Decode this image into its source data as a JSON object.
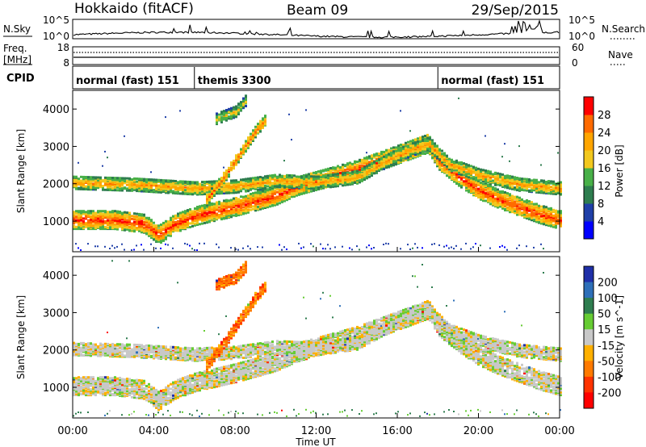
{
  "header": {
    "station": "Hokkaido (fitACF)",
    "beam": "Beam 09",
    "date": "29/Sep/2015"
  },
  "noise_panel": {
    "left_label": "N.Sky",
    "right_label": "N.Search",
    "left_ticks": [
      "10^5",
      "10^0"
    ],
    "right_ticks": [
      "10^5",
      "10^0"
    ]
  },
  "freq_panel": {
    "left_label_line1": "Freq.",
    "left_label_line2": "[MHz]",
    "right_label": "Nave",
    "left_ticks": [
      "18",
      "8"
    ],
    "right_ticks": [
      "60",
      "0"
    ]
  },
  "cpid_panel": {
    "label": "CPID",
    "segments": [
      {
        "label": "normal (fast) 151",
        "start_h": 0,
        "end_h": 6
      },
      {
        "label": "themis 3300",
        "start_h": 6,
        "end_h": 18
      },
      {
        "label": "normal (fast) 151",
        "start_h": 18,
        "end_h": 24
      }
    ]
  },
  "power_colorbar": {
    "label": "Power [dB]",
    "ticks": [
      "4",
      "8",
      "12",
      "16",
      "20",
      "24",
      "28"
    ],
    "colors": [
      "#0000ff",
      "#1f3fa8",
      "#2e7d4f",
      "#48b048",
      "#f2c81e",
      "#ffa500",
      "#ff6a00",
      "#ff0000"
    ]
  },
  "velocity_colorbar": {
    "label": "Velocity [m s^-1]",
    "ticks": [
      "200",
      "100",
      "50",
      "15",
      "-15",
      "-50",
      "-100",
      "-200"
    ],
    "colors": [
      "#1f2fa8",
      "#2e6fb8",
      "#2e7d4f",
      "#66cc33",
      "#c8c8c8",
      "#ffb000",
      "#ff7a00",
      "#ff3300",
      "#ff0000"
    ]
  },
  "chart_data": [
    {
      "type": "heatmap",
      "title": "Power",
      "xlabel": "Time UT",
      "ylabel": "Slant Range [km]",
      "x_ticks": [
        "00:00",
        "04:00",
        "08:00",
        "12:00",
        "16:00",
        "20:00",
        "00:00"
      ],
      "y_ticks": [
        "1000",
        "2000",
        "3000",
        "4000"
      ],
      "xlim": [
        0,
        24
      ],
      "ylim": [
        180,
        4500
      ],
      "bands": [
        {
          "points": [
            [
              0,
              1000
            ],
            [
              2,
              1000
            ],
            [
              3.5,
              900
            ],
            [
              4.2,
              600
            ],
            [
              5,
              900
            ],
            [
              6,
              1100
            ],
            [
              8,
              1350
            ],
            [
              9,
              1500
            ],
            [
              10,
              1650
            ],
            [
              11,
              1900
            ],
            [
              12,
              2050
            ],
            [
              13,
              2200
            ],
            [
              14,
              2350
            ],
            [
              15,
              2550
            ],
            [
              16,
              2750
            ],
            [
              17,
              2950
            ],
            [
              17.5,
              3050
            ],
            [
              18,
              2600
            ],
            [
              19,
              2150
            ],
            [
              20,
              1800
            ],
            [
              21,
              1550
            ],
            [
              22,
              1350
            ],
            [
              23,
              1150
            ],
            [
              24,
              1000
            ]
          ],
          "halfwidth": 240,
          "level": 0.92
        },
        {
          "points": [
            [
              0,
              2000
            ],
            [
              3,
              1950
            ],
            [
              6,
              1850
            ],
            [
              8,
              1900
            ],
            [
              10,
              2050
            ],
            [
              12,
              2000
            ],
            [
              14,
              2150
            ],
            [
              16,
              2750
            ],
            [
              17.5,
              3050
            ],
            [
              18.5,
              2500
            ],
            [
              20,
              2200
            ],
            [
              22,
              1950
            ],
            [
              24,
              1850
            ]
          ],
          "halfwidth": 170,
          "level": 0.72
        },
        {
          "points": [
            [
              6.5,
              1500
            ],
            [
              7.5,
              2200
            ],
            [
              8.5,
              3000
            ],
            [
              9,
              3400
            ],
            [
              9.5,
              3700
            ]
          ],
          "halfwidth": 150,
          "level": 0.82
        },
        {
          "points": [
            [
              7,
              3700
            ],
            [
              8,
              3900
            ],
            [
              8.5,
              4200
            ]
          ],
          "halfwidth": 140,
          "level": 0.6
        }
      ]
    },
    {
      "type": "heatmap",
      "title": "Velocity",
      "xlabel": "Time UT",
      "ylabel": "Slant Range [km]",
      "x_ticks": [
        "00:00",
        "04:00",
        "08:00",
        "12:00",
        "16:00",
        "20:00",
        "00:00"
      ],
      "y_ticks": [
        "1000",
        "2000",
        "3000",
        "4000"
      ],
      "xlim": [
        0,
        24
      ],
      "ylim": [
        180,
        4500
      ],
      "bands": [
        {
          "points": [
            [
              0,
              1000
            ],
            [
              2,
              1000
            ],
            [
              3.5,
              900
            ],
            [
              4.2,
              600
            ],
            [
              5,
              900
            ],
            [
              6,
              1100
            ],
            [
              8,
              1350
            ],
            [
              9,
              1500
            ],
            [
              10,
              1650
            ],
            [
              11,
              1900
            ],
            [
              12,
              2050
            ],
            [
              13,
              2200
            ],
            [
              14,
              2350
            ],
            [
              15,
              2550
            ],
            [
              16,
              2750
            ],
            [
              17,
              2950
            ],
            [
              17.5,
              3050
            ],
            [
              18,
              2600
            ],
            [
              19,
              2150
            ],
            [
              20,
              1800
            ],
            [
              21,
              1550
            ],
            [
              22,
              1350
            ],
            [
              23,
              1150
            ],
            [
              24,
              1000
            ]
          ],
          "halfwidth": 240,
          "level": 0.0
        },
        {
          "points": [
            [
              0,
              2000
            ],
            [
              3,
              1950
            ],
            [
              6,
              1850
            ],
            [
              8,
              1900
            ],
            [
              10,
              2050
            ],
            [
              12,
              2000
            ],
            [
              14,
              2150
            ],
            [
              16,
              2750
            ],
            [
              17.5,
              3050
            ],
            [
              18.5,
              2500
            ],
            [
              20,
              2200
            ],
            [
              22,
              1950
            ],
            [
              24,
              1850
            ]
          ],
          "halfwidth": 170,
          "level": 0.0
        },
        {
          "points": [
            [
              6.5,
              1500
            ],
            [
              7.5,
              2200
            ],
            [
              8.5,
              3000
            ],
            [
              9,
              3400
            ],
            [
              9.5,
              3700
            ]
          ],
          "halfwidth": 150,
          "level": -0.4
        },
        {
          "points": [
            [
              7,
              3700
            ],
            [
              8,
              3900
            ],
            [
              8.5,
              4200
            ]
          ],
          "halfwidth": 140,
          "level": -0.4
        }
      ]
    }
  ]
}
